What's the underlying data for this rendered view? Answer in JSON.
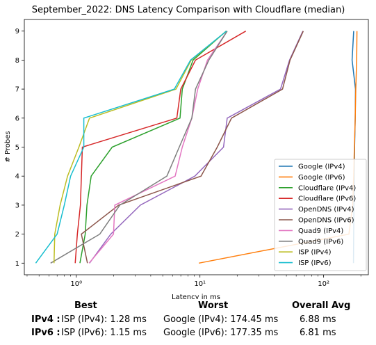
{
  "chart_data": {
    "type": "line",
    "title": "September_2022: DNS Latency Comparison with Cloudflare (median)",
    "xlabel": "Latency in ms",
    "ylabel": "# Probes",
    "xscale": "log",
    "xlim": [
      0.38,
      230
    ],
    "ylim": [
      0.6,
      9.4
    ],
    "xticks": [
      {
        "value": 1,
        "label": "10⁰"
      },
      {
        "value": 10,
        "label": "10¹"
      },
      {
        "value": 100,
        "label": "10²"
      }
    ],
    "yticks": [
      1,
      2,
      3,
      4,
      5,
      6,
      7,
      8,
      9
    ],
    "legend_position": "lower right",
    "grid": false,
    "series": [
      {
        "name": "Google (IPv4)",
        "color": "#1f77b4",
        "x": [
          174.45,
          175,
          176,
          177,
          178,
          180,
          181,
          170,
          175
        ],
        "y": [
          1,
          2,
          3,
          4,
          5,
          6,
          7,
          8,
          9
        ]
      },
      {
        "name": "Google (IPv6)",
        "color": "#ff7f0e",
        "x": [
          9.8,
          160,
          172,
          175,
          177.35,
          180,
          182,
          185,
          186
        ],
        "y": [
          1,
          2,
          3,
          4,
          5,
          6,
          7,
          8,
          9
        ]
      },
      {
        "name": "Cloudflare (IPv4)",
        "color": "#2ca02c",
        "x": [
          1.07,
          1.18,
          1.22,
          1.32,
          1.95,
          6.9,
          7.2,
          8.8,
          16.3
        ],
        "y": [
          1,
          2,
          3,
          4,
          5,
          6,
          7,
          8,
          9
        ]
      },
      {
        "name": "Cloudflare (IPv6)",
        "color": "#d62728",
        "x": [
          0.98,
          1.02,
          1.08,
          1.1,
          1.12,
          6.5,
          7.0,
          9.2,
          23.5
        ],
        "y": [
          1,
          2,
          3,
          4,
          5,
          6,
          7,
          8,
          9
        ]
      },
      {
        "name": "OpenDNS (IPv4)",
        "color": "#9467bd",
        "x": [
          1.28,
          1.9,
          3.3,
          9.1,
          15.5,
          16.6,
          44.8,
          53.0,
          68.0
        ],
        "y": [
          1,
          2,
          3,
          4,
          5,
          6,
          7,
          8,
          9
        ]
      },
      {
        "name": "OpenDNS (IPv6)",
        "color": "#8c564b",
        "x": [
          1.23,
          1.1,
          2.2,
          10.2,
          13.8,
          18.0,
          46.5,
          53.5,
          68.5
        ],
        "y": [
          1,
          2,
          3,
          4,
          5,
          6,
          7,
          8,
          9
        ]
      },
      {
        "name": "Quad9 (IPv4)",
        "color": "#e377c2",
        "x": [
          1.27,
          2.0,
          2.05,
          6.3,
          7.2,
          8.6,
          9.6,
          11.5,
          16.6
        ],
        "y": [
          1,
          2,
          3,
          4,
          5,
          6,
          7,
          8,
          9
        ]
      },
      {
        "name": "Quad9 (IPv6)",
        "color": "#7f7f7f",
        "x": [
          0.62,
          1.55,
          2.25,
          5.4,
          6.8,
          8.6,
          9.2,
          11.8,
          16.6
        ],
        "y": [
          1,
          2,
          3,
          4,
          5,
          6,
          7,
          8,
          9
        ]
      },
      {
        "name": "ISP (IPv4)",
        "color": "#bcbd22",
        "x": [
          0.66,
          0.67,
          0.74,
          0.85,
          1.05,
          1.28,
          6.4,
          8.5,
          16.4
        ],
        "y": [
          1,
          2,
          3,
          4,
          5,
          6,
          7,
          8,
          9
        ]
      },
      {
        "name": "ISP (IPv6)",
        "color": "#17becf",
        "x": [
          0.47,
          0.7,
          0.8,
          0.9,
          1.15,
          1.15,
          6.2,
          8.4,
          16.4
        ],
        "y": [
          1,
          2,
          3,
          4,
          5,
          6,
          7,
          8,
          9
        ]
      }
    ]
  },
  "summary": {
    "headers": {
      "best": "Best",
      "worst": "Worst",
      "avg": "Overall Avg"
    },
    "rows": [
      {
        "label": "IPv4 :",
        "best": "ISP (IPv4): 1.28 ms",
        "worst": "Google (IPv4): 174.45 ms",
        "avg": "6.88 ms"
      },
      {
        "label": "IPv6 :",
        "best": "ISP (IPv6): 1.15 ms",
        "worst": "Google (IPv6): 177.35 ms",
        "avg": "6.81 ms"
      }
    ]
  }
}
